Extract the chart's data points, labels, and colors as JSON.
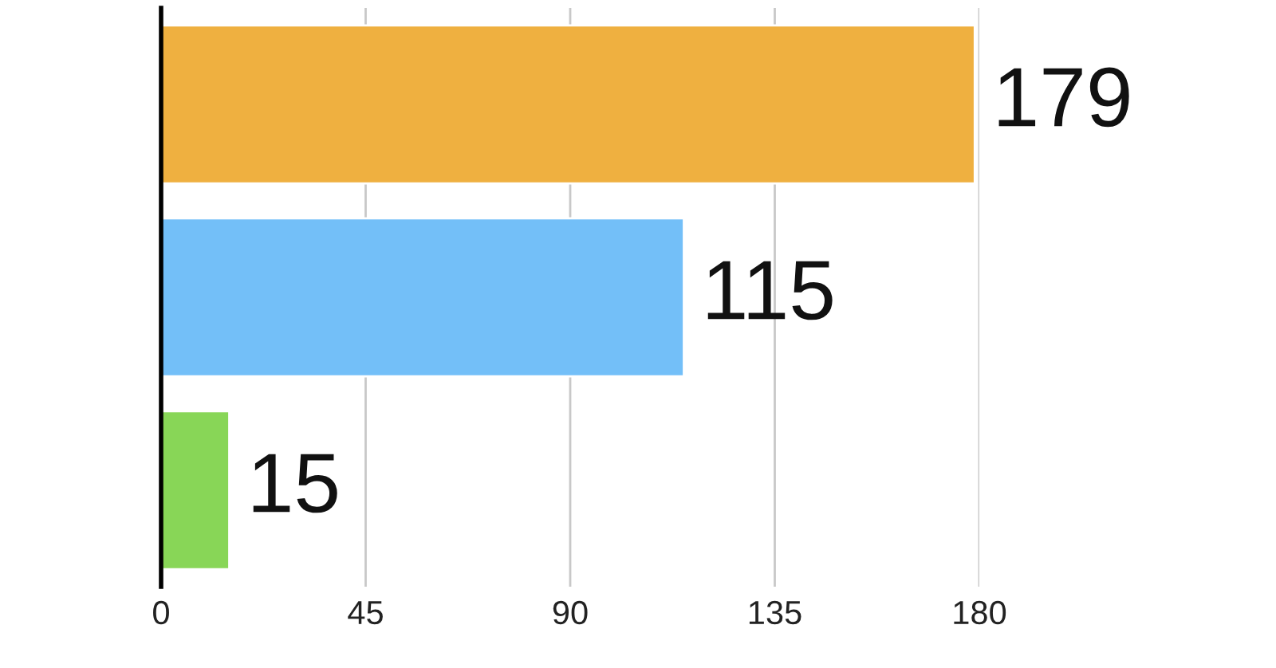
{
  "chart_data": {
    "type": "bar",
    "orientation": "horizontal",
    "categories": [
      null,
      null,
      null
    ],
    "values": [
      179,
      115,
      15
    ],
    "colors": [
      "#efb040",
      "#73bff8",
      "#88d657"
    ],
    "xlim": [
      0,
      180
    ],
    "xticks": [
      0,
      45,
      90,
      135,
      180
    ],
    "grid": "x",
    "data_labels": true
  }
}
